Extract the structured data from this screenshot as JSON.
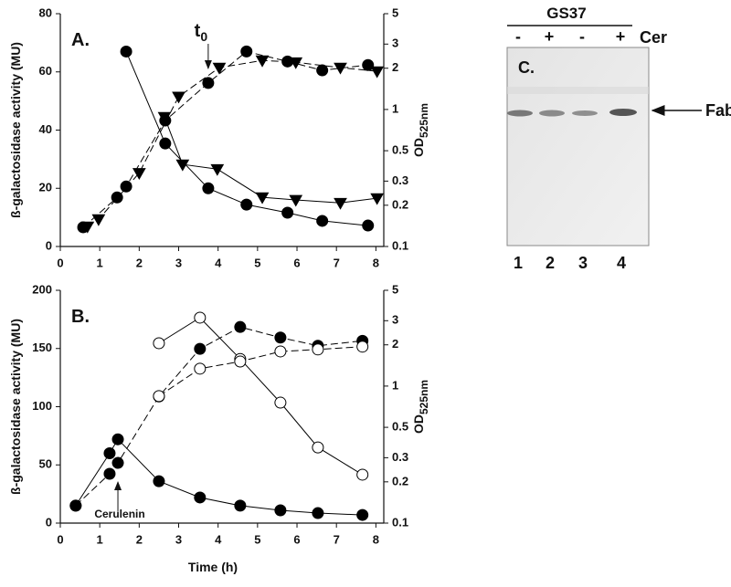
{
  "chart_data": [
    {
      "type": "line",
      "panel_label": "A.",
      "ylabel": "ß-galactosidase activity (MU)",
      "y2label": {
        "text": "OD",
        "subscript": "525nm"
      },
      "annotation": {
        "text": "t",
        "subscript": "0"
      },
      "xlim": [
        0,
        8.2
      ],
      "xticks": [
        0,
        1,
        2,
        3,
        4,
        5,
        6,
        7,
        8
      ],
      "ylim": [
        0,
        80
      ],
      "yticks": [
        0,
        20,
        40,
        60,
        80
      ],
      "y2lim": [
        0.1,
        5
      ],
      "y2ticks": [
        0.1,
        0.2,
        0.3,
        0.5,
        1,
        2,
        3,
        5
      ],
      "y2scale": "log",
      "series": [
        {
          "marker": "circle",
          "fill": "#000",
          "color": "#000",
          "line": "solid",
          "axis": "y",
          "x": [
            1.67,
            2.66,
            3.75,
            4.72,
            5.76,
            6.64,
            7.8
          ],
          "values": [
            67,
            35.4,
            20,
            14.4,
            11.6,
            8.8,
            7.2
          ]
        },
        {
          "marker": "triangle-down",
          "fill": "#000",
          "color": "#000",
          "line": "solid",
          "axis": "y",
          "x": [
            2.64,
            3.1,
            3.98,
            5.12,
            5.97,
            7.1,
            8.03
          ],
          "values": [
            44.5,
            28.2,
            26.6,
            16.9,
            16,
            15,
            16.6
          ]
        },
        {
          "marker": "circle",
          "fill": "#000",
          "color": "#000",
          "line": "dashed",
          "axis": "y2",
          "x": [
            0.58,
            1.44,
            1.67,
            2.66,
            3.75,
            4.72,
            5.76,
            6.64,
            7.8
          ],
          "values": [
            0.138,
            0.228,
            0.274,
            0.83,
            1.56,
            2.65,
            2.24,
            1.93,
            2.11
          ]
        },
        {
          "marker": "triangle-down",
          "fill": "#000",
          "color": "#000",
          "line": "dashed",
          "axis": "y2",
          "x": [
            0.69,
            0.97,
            2.0,
            3.0,
            4.03,
            5.12,
            5.97,
            7.1,
            8.03
          ],
          "values": [
            0.14,
            0.158,
            0.344,
            1.24,
            2.02,
            2.28,
            2.21,
            2.02,
            1.9
          ]
        }
      ]
    },
    {
      "type": "line",
      "panel_label": "B.",
      "xlabel": "Time (h)",
      "ylabel": "ß-galactosidase activity (MU)",
      "y2label": {
        "text": "OD",
        "subscript": "525nm"
      },
      "annotation": {
        "text": "Cerulenin"
      },
      "xlim": [
        0,
        8.2
      ],
      "xticks": [
        0,
        1,
        2,
        3,
        4,
        5,
        6,
        7,
        8
      ],
      "ylim": [
        0,
        200
      ],
      "yticks": [
        0,
        50,
        100,
        150,
        200
      ],
      "y2lim": [
        0.1,
        5
      ],
      "y2ticks": [
        0.1,
        0.2,
        0.3,
        0.5,
        1,
        2,
        3,
        5
      ],
      "y2scale": "log",
      "series": [
        {
          "marker": "circle",
          "fill": "#000",
          "color": "#000",
          "line": "solid",
          "axis": "y",
          "x": [
            0.39,
            1.25,
            1.46,
            2.5,
            3.54,
            4.56,
            5.58,
            6.53,
            7.66
          ],
          "values": [
            15,
            60,
            72,
            36,
            22,
            15,
            11,
            8.6,
            7
          ]
        },
        {
          "marker": "circle",
          "fill": "#fff",
          "color": "#000",
          "line": "solid",
          "axis": "y",
          "x": [
            2.5,
            3.54,
            4.56,
            5.58,
            6.53,
            7.66
          ],
          "values": [
            154.5,
            176.5,
            141,
            103.5,
            65,
            41.6
          ]
        },
        {
          "marker": "circle",
          "fill": "#000",
          "color": "#000",
          "line": "dashed",
          "axis": "y2",
          "x": [
            0.39,
            1.25,
            1.46,
            2.5,
            3.54,
            4.56,
            5.58,
            6.53,
            7.66
          ],
          "values": [
            0.134,
            0.229,
            0.275,
            0.84,
            1.87,
            2.7,
            2.26,
            1.97,
            2.14
          ]
        },
        {
          "marker": "circle",
          "fill": "#fff",
          "color": "#000",
          "line": "dashed",
          "axis": "y2",
          "x": [
            2.5,
            3.54,
            4.56,
            5.58,
            6.53,
            7.66
          ],
          "values": [
            0.845,
            1.34,
            1.51,
            1.79,
            1.85,
            1.94
          ]
        }
      ]
    }
  ],
  "gel": {
    "strain": "GS37",
    "treatments": [
      "-",
      "+",
      "-",
      "+"
    ],
    "treatment_label": "Cer",
    "panel_label": "C.",
    "band_label": "FabF",
    "lanes": [
      "1",
      "2",
      "3",
      "4"
    ]
  }
}
